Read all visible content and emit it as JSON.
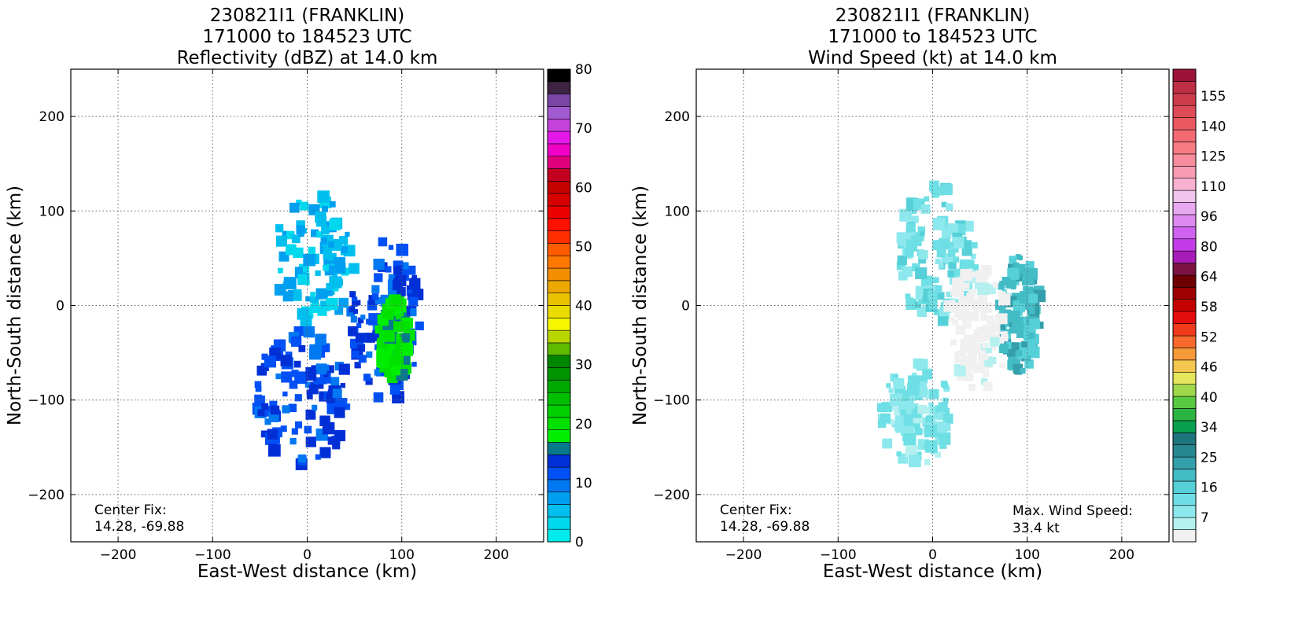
{
  "panels": [
    {
      "title_lines": [
        "230821I1 (FRANKLIN)",
        "171000 to 184523 UTC",
        "Reflectivity (dBZ) at 14.0 km"
      ],
      "xlabel": "East-West distance (km)",
      "ylabel": "North-South distance (km)",
      "xticks": [
        "−200",
        "−100",
        "0",
        "100",
        "200"
      ],
      "yticks": [
        "200",
        "100",
        "0",
        "−100",
        "−200"
      ],
      "annotation_left": [
        "Center Fix:",
        "14.28, -69.88"
      ],
      "annotation_right": [],
      "colorbar_labels": [
        "80",
        "70",
        "60",
        "50",
        "40",
        "30",
        "20",
        "10",
        "0"
      ]
    },
    {
      "title_lines": [
        "230821I1 (FRANKLIN)",
        "171000 to 184523 UTC",
        "Wind Speed (kt) at 14.0 km"
      ],
      "xlabel": "East-West distance (km)",
      "ylabel": "North-South distance (km)",
      "xticks": [
        "−200",
        "−100",
        "0",
        "100",
        "200"
      ],
      "yticks": [
        "200",
        "100",
        "0",
        "−100",
        "−200"
      ],
      "annotation_left": [
        "Center Fix:",
        "14.28, -69.88"
      ],
      "annotation_right": [
        "Max. Wind Speed:",
        "33.4 kt"
      ],
      "colorbar_labels": [
        "155",
        "140",
        "125",
        "110",
        "96",
        "80",
        "64",
        "58",
        "52",
        "46",
        "40",
        "34",
        "25",
        "16",
        "7"
      ]
    }
  ],
  "chart_data": [
    {
      "type": "heatmap",
      "quantity": "Reflectivity (dBZ)",
      "xlim": [
        -250,
        250
      ],
      "ylim": [
        -250,
        250
      ],
      "grid": true,
      "colorbar": {
        "min": 0,
        "max": 80,
        "colors": [
          "#00ecec",
          "#00d8ee",
          "#00bfef",
          "#009ff0",
          "#0078f2",
          "#0050f5",
          "#002fd6",
          "#087a8c",
          "#00ef00",
          "#00e100",
          "#00d000",
          "#00c000",
          "#00aa00",
          "#009500",
          "#008600",
          "#5fba00",
          "#b9d600",
          "#f6f600",
          "#ebdc00",
          "#e9c200",
          "#eca800",
          "#f28e00",
          "#ff7800",
          "#ff5c00",
          "#ff2f00",
          "#ff1000",
          "#ee0000",
          "#d60000",
          "#c40000",
          "#c40020",
          "#e0007c",
          "#f000c6",
          "#e418e8",
          "#c442dc",
          "#a25ad0",
          "#7a46a6",
          "#3e2242",
          "#000000"
        ]
      },
      "regions": [
        {
          "name": "northwest spiral band",
          "value_dbz": 5,
          "x_range_km": [
            -35,
            50
          ],
          "y_range_km": [
            -20,
            120
          ]
        },
        {
          "name": "eastern band",
          "value_dbz": 12,
          "x_range_km": [
            45,
            120
          ],
          "y_range_km": [
            -105,
            70
          ]
        },
        {
          "name": "southwest band",
          "value_dbz": 12,
          "x_range_km": [
            -55,
            45
          ],
          "y_range_km": [
            -170,
            -25
          ]
        },
        {
          "name": "peak cells",
          "value_dbz": 18,
          "x_range_km": [
            75,
            110
          ],
          "y_range_km": [
            -80,
            10
          ]
        }
      ]
    },
    {
      "type": "heatmap",
      "quantity": "Wind Speed (kt)",
      "xlim": [
        -250,
        250
      ],
      "ylim": [
        -250,
        250
      ],
      "grid": true,
      "max_wind_kt": 33.4,
      "colorbar": {
        "min": 7,
        "max": 160,
        "colors": [
          "#f0f0f0",
          "#b4f0f0",
          "#8ce8ec",
          "#6edfe4",
          "#56d0d8",
          "#44bcc6",
          "#349fab",
          "#28868f",
          "#1e747c",
          "#08a04e",
          "#2cb442",
          "#5ac840",
          "#9ed84a",
          "#e6e65c",
          "#f4c84e",
          "#f89a3a",
          "#f86a2c",
          "#f03a1c",
          "#e40c0c",
          "#c40000",
          "#9c0000",
          "#6e0000",
          "#7a1242",
          "#a81cb8",
          "#c43ce8",
          "#d062f0",
          "#dc8af0",
          "#e8a8f0",
          "#f0c4ec",
          "#f8b0d0",
          "#f89ab4",
          "#f88c9c",
          "#f87c84",
          "#f46a72",
          "#ec5862",
          "#de4a56",
          "#ce3c4c",
          "#be2e44",
          "#9c1238"
        ]
      },
      "regions": [
        {
          "name": "northwest band",
          "value_kt": 20,
          "x_range_km": [
            -35,
            45
          ],
          "y_range_km": [
            -20,
            130
          ]
        },
        {
          "name": "eastern band core",
          "value_kt": 28,
          "x_range_km": [
            70,
            115
          ],
          "y_range_km": [
            -70,
            55
          ]
        },
        {
          "name": "southwest band",
          "value_kt": 18,
          "x_range_km": [
            -55,
            20
          ],
          "y_range_km": [
            -170,
            -60
          ]
        },
        {
          "name": "inner light-wind region",
          "value_kt": 8,
          "x_range_km": [
            15,
            80
          ],
          "y_range_km": [
            -90,
            40
          ]
        }
      ]
    }
  ]
}
